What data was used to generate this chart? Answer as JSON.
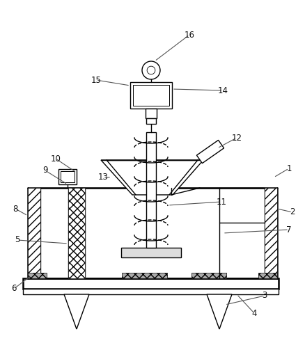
{
  "background_color": "#ffffff",
  "line_color": "#000000",
  "lw": 1.0,
  "tlw": 1.8,
  "fig_w": 4.38,
  "fig_h": 5.03,
  "dpi": 100
}
